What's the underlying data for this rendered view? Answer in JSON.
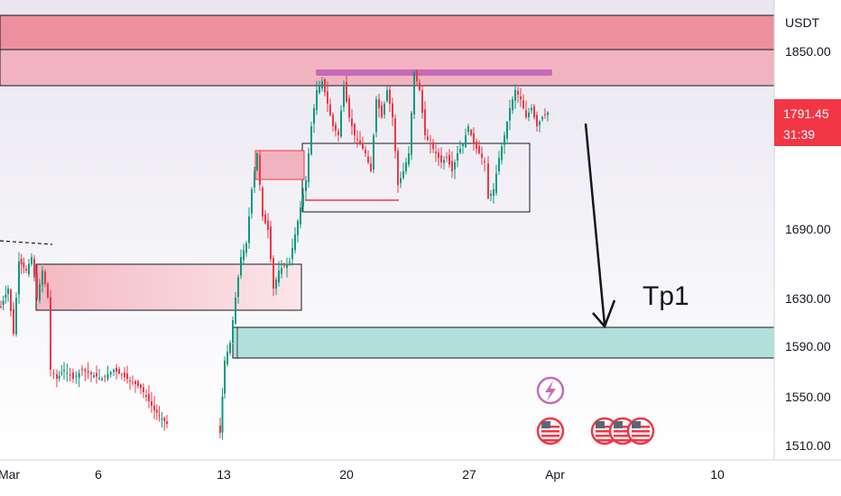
{
  "chart_data": {
    "type": "candlestick",
    "quote_currency": "USDT",
    "y_tick_labels": [
      "1850.00",
      "1690.00",
      "1630.00",
      "1590.00",
      "1550.00",
      "1510.00"
    ],
    "x_tick_labels": [
      "Mar",
      "6",
      "13",
      "20",
      "27",
      "Apr",
      "10"
    ],
    "ylim": [
      1505,
      1895
    ],
    "current_price": {
      "value": 1791.45,
      "label": "1791.45",
      "countdown": "31:39",
      "color": "#f23645"
    },
    "annotations": {
      "target_label": "Tp1",
      "arrow": {
        "from_price": 1780,
        "to_price": 1601
      }
    },
    "zones": [
      {
        "name": "supply-zone-top",
        "from_price": 1821,
        "to_price": 1887,
        "color": "#f28b9a"
      },
      {
        "name": "demand-zone",
        "from_price": 1580,
        "to_price": 1608,
        "color": "#b2dfdb"
      }
    ],
    "colors": {
      "up": "#089981",
      "down": "#f23645",
      "marker": "#c56bb8"
    },
    "event_icons": [
      "lightning-icon",
      "us-flag-icon",
      "us-flag-icon",
      "us-flag-icon",
      "us-flag-icon"
    ]
  }
}
